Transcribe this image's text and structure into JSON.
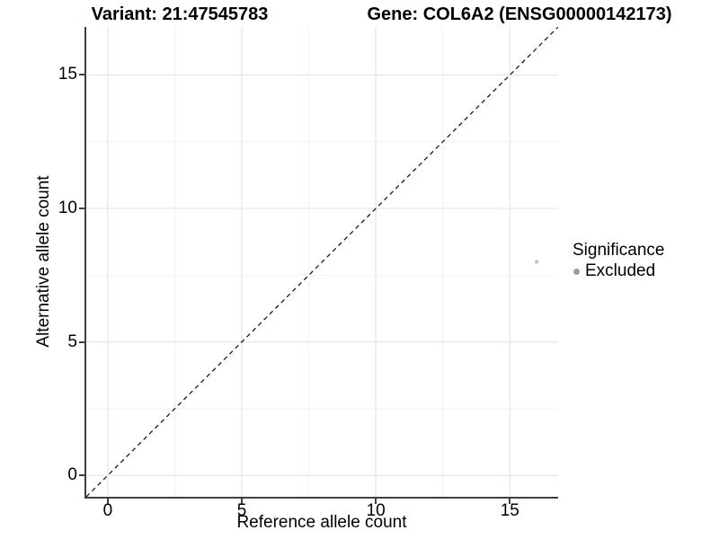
{
  "header": {
    "variant_title": "Variant: 21:47545783",
    "gene_title": "Gene: COL6A2 (ENSG00000142173)"
  },
  "chart_data": {
    "type": "scatter",
    "xlabel": "Reference allele count",
    "ylabel": "Alternative allele count",
    "xlim": [
      -0.8,
      16.8
    ],
    "ylim": [
      -0.8,
      16.8
    ],
    "x_major_ticks": [
      0,
      5,
      10,
      15
    ],
    "y_major_ticks": [
      0,
      5,
      10,
      15
    ],
    "x_minor_ticks": [
      2.5,
      7.5,
      12.5
    ],
    "y_minor_ticks": [
      2.5,
      7.5,
      12.5
    ],
    "grid": true,
    "identity_line": {
      "style": "dashed",
      "from": [
        -0.8,
        -0.8
      ],
      "to": [
        16.8,
        16.8
      ]
    },
    "points": [
      {
        "x": 16,
        "y": 8,
        "series": "Excluded"
      }
    ],
    "legend": {
      "title": "Significance",
      "position": "right",
      "items": [
        {
          "label": "Excluded",
          "color": "#9c9c9c"
        }
      ]
    }
  },
  "style": {
    "grid_major_color": "#e6e6e6",
    "grid_minor_color": "#f2f2f2",
    "axis_line_color": "#404040",
    "identity_line_color": "#1a1a1a",
    "point_color": "#c6c6c6",
    "text_color": "#000000"
  }
}
